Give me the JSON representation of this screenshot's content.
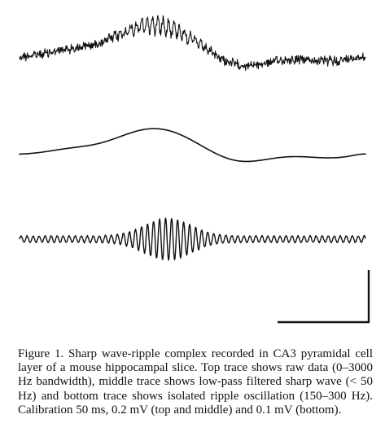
{
  "figure": {
    "traces": [
      {
        "id": "raw",
        "description_visible": false
      },
      {
        "id": "sharp-wave",
        "description_visible": false
      },
      {
        "id": "ripple",
        "description_visible": false
      }
    ],
    "colors": {
      "ink": "#111111",
      "background": "#ffffff"
    }
  },
  "caption": {
    "text": "Figure 1. Sharp wave-ripple complex recorded in CA3 pyramidal cell layer of a mouse hippocampal slice. Top trace shows raw data (0–3000 Hz bandwidth), middle trace shows low-pass filtered sharp wave (< 50 Hz) and bottom trace shows isolated ripple oscillation (150–300 Hz). Calibration 50 ms, 0.2 mV (top and middle) and 0.1 mV (bottom)."
  }
}
